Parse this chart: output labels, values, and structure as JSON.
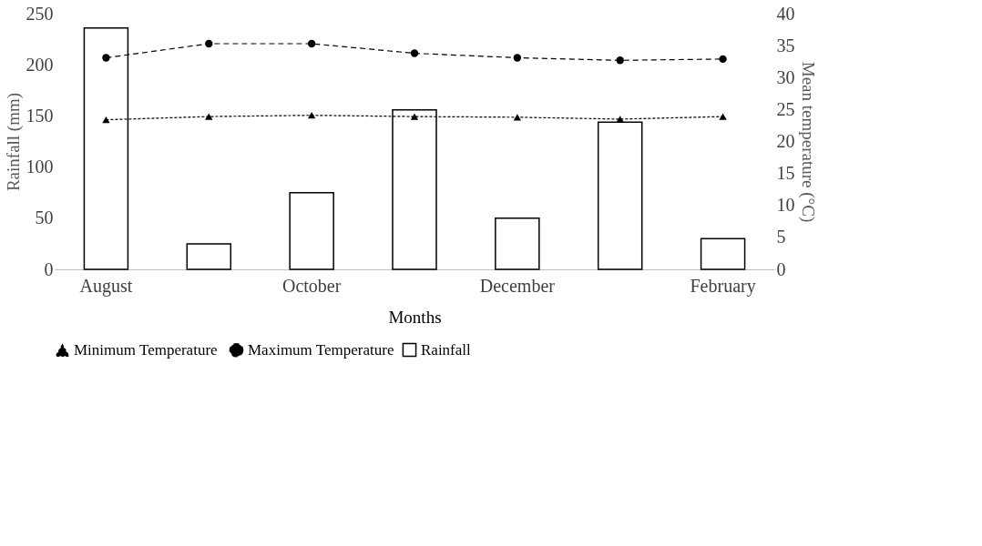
{
  "chart_data": {
    "type": "bar",
    "xlabel": "Months",
    "ylabel": "Rainfall  (mm)",
    "y2label": "Mean temperature  (°C)",
    "categories": [
      "August",
      null,
      "October",
      null,
      "December",
      null,
      "February"
    ],
    "series": [
      {
        "name": "Rainfall",
        "color": "#ffffff",
        "values": [
          236,
          25,
          75,
          156,
          50,
          144,
          30
        ]
      },
      {
        "name": "Minimum Temperature",
        "type": "line",
        "axis": "y2",
        "color": "#000000",
        "marker": "triangle",
        "line_style": "dotted",
        "values": [
          23.4,
          23.9,
          24.1,
          23.9,
          23.8,
          23.5,
          23.9
        ]
      },
      {
        "name": "Maximum Temperature",
        "type": "line",
        "axis": "y2",
        "color": "#000000",
        "marker": "circle",
        "line_style": "dashed",
        "values": [
          33.1,
          35.3,
          35.3,
          33.8,
          33.1,
          32.7,
          32.9
        ]
      }
    ],
    "ylim": [
      0,
      250
    ],
    "yticks": [
      0,
      50,
      100,
      150,
      200,
      250
    ],
    "y2lim": [
      0,
      40
    ],
    "y2ticks": [
      0,
      5,
      10,
      15,
      20,
      25,
      30,
      35,
      40
    ],
    "grid": false,
    "legend": "bottom"
  }
}
